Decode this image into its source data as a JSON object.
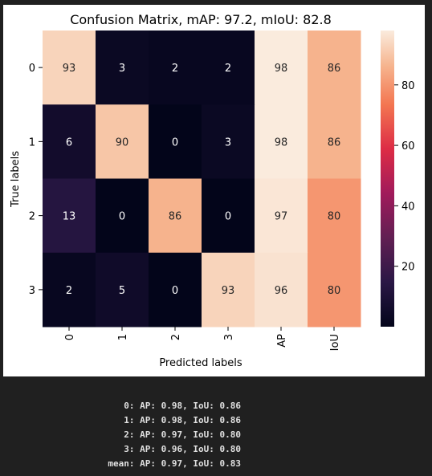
{
  "chart_data": {
    "type": "heatmap",
    "title": "Confusion Matrix, mAP:  97.2, mIoU:  82.8",
    "xlabel": "Predicted labels",
    "ylabel": "True labels",
    "x_categories": [
      "0",
      "1",
      "2",
      "3",
      "AP",
      "IoU"
    ],
    "y_categories": [
      "0",
      "1",
      "2",
      "3"
    ],
    "values": [
      [
        93,
        3,
        2,
        2,
        98,
        86
      ],
      [
        6,
        90,
        0,
        3,
        98,
        86
      ],
      [
        13,
        0,
        86,
        0,
        97,
        80
      ],
      [
        2,
        5,
        0,
        93,
        96,
        80
      ]
    ],
    "colormap": "rocket",
    "colorbar": {
      "range": [
        0,
        98
      ],
      "ticks": [
        20,
        40,
        60,
        80
      ]
    }
  },
  "console": {
    "lines": [
      "0: AP: 0.98, IoU: 0.86",
      "1: AP: 0.98, IoU: 0.86",
      "2: AP: 0.97, IoU: 0.80",
      "3: AP: 0.96, IoU: 0.80",
      "mean: AP: 0.97, IoU: 0.83"
    ]
  }
}
